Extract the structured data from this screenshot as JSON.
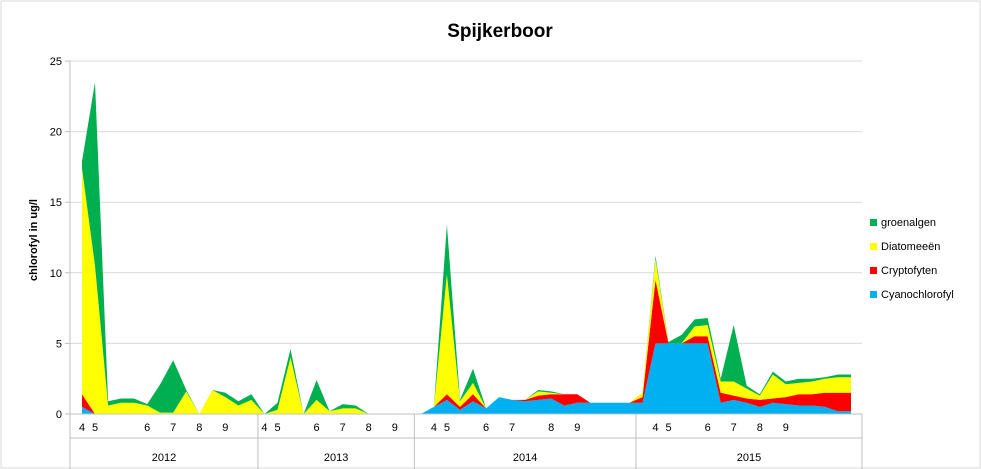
{
  "chart_data": {
    "type": "area",
    "stacked": true,
    "title": "Spijkerboor",
    "ylabel": "chlorofyl in ug/l",
    "xlabel": "",
    "ylim": [
      0,
      25
    ],
    "yticks": [
      0,
      5,
      10,
      15,
      20,
      25
    ],
    "grid": true,
    "legend_position": "right",
    "years": [
      "2012",
      "2013",
      "2014",
      "2015"
    ],
    "year_ranges": [
      [
        0,
        14
      ],
      [
        14,
        26
      ],
      [
        26,
        43
      ],
      [
        43,
        60
      ]
    ],
    "month_ticks": [
      {
        "i": 0,
        "label": "4"
      },
      {
        "i": 1,
        "label": "5"
      },
      {
        "i": 5,
        "label": "6"
      },
      {
        "i": 7,
        "label": "7"
      },
      {
        "i": 9,
        "label": "8"
      },
      {
        "i": 11,
        "label": "9"
      },
      {
        "i": 14,
        "label": "4"
      },
      {
        "i": 15,
        "label": "5"
      },
      {
        "i": 18,
        "label": "6"
      },
      {
        "i": 20,
        "label": "7"
      },
      {
        "i": 22,
        "label": "8"
      },
      {
        "i": 24,
        "label": "9"
      },
      {
        "i": 27,
        "label": "4"
      },
      {
        "i": 28,
        "label": "5"
      },
      {
        "i": 31,
        "label": "6"
      },
      {
        "i": 33,
        "label": "7"
      },
      {
        "i": 36,
        "label": "8"
      },
      {
        "i": 38,
        "label": "9"
      },
      {
        "i": 44,
        "label": "4"
      },
      {
        "i": 45,
        "label": "5"
      },
      {
        "i": 48,
        "label": "6"
      },
      {
        "i": 50,
        "label": "7"
      },
      {
        "i": 52,
        "label": "8"
      },
      {
        "i": 54,
        "label": "9"
      }
    ],
    "series": [
      {
        "name": "Cyanochlorofyl",
        "color": "#00b0f0",
        "values": [
          0.5,
          0,
          0,
          0,
          0,
          0,
          0,
          0,
          0,
          0,
          0,
          0,
          0,
          0,
          0,
          0,
          0,
          0,
          0,
          0,
          0,
          0,
          0,
          0,
          0,
          0,
          0,
          0.5,
          1.0,
          0.3,
          0.9,
          0.4,
          1.2,
          1.0,
          0.9,
          1.0,
          1.1,
          0.6,
          0.8,
          0.8,
          0.8,
          0.8,
          0.8,
          0.8,
          5.0,
          5.0,
          5.0,
          5.0,
          5.0,
          0.8,
          1.0,
          0.8,
          0.5,
          0.8,
          0.7,
          0.6,
          0.6,
          0.5,
          0.2,
          0.2
        ]
      },
      {
        "name": "Cryptofyten",
        "color": "#ff0000",
        "values": [
          0.9,
          0,
          0,
          0,
          0,
          0,
          0,
          0,
          0,
          0,
          0,
          0,
          0,
          0,
          0,
          0,
          0,
          0,
          0,
          0,
          0,
          0,
          0,
          0,
          0,
          0,
          0,
          0,
          0.4,
          0.2,
          0.5,
          0,
          0,
          0,
          0.1,
          0.3,
          0.3,
          0.8,
          0.6,
          0,
          0,
          0,
          0,
          0.4,
          4.5,
          0,
          0,
          0.5,
          0.5,
          0.7,
          0.3,
          0.3,
          0.5,
          0.3,
          0.5,
          0.8,
          0.8,
          1.0,
          1.3,
          1.3
        ]
      },
      {
        "name": "Diatomeeën",
        "color": "#ffff00",
        "values": [
          16.0,
          10.5,
          0.6,
          0.8,
          0.8,
          0.6,
          0.1,
          0.1,
          1.6,
          0,
          1.7,
          1.2,
          0.6,
          1.0,
          0,
          0.3,
          4.0,
          0,
          1.0,
          0.2,
          0.4,
          0.4,
          0,
          0,
          0,
          0,
          0,
          0,
          8.5,
          0.4,
          0.8,
          0,
          0,
          0,
          0,
          0.3,
          0.1,
          0,
          0,
          0,
          0,
          0,
          0,
          0.3,
          1.5,
          0,
          0,
          0.7,
          0.8,
          0.8,
          1.0,
          0.7,
          0.3,
          1.7,
          0.9,
          0.8,
          0.9,
          1.0,
          1.1,
          1.1
        ]
      },
      {
        "name": "groenalgen",
        "color": "#00b050",
        "values": [
          0.5,
          13.0,
          0.3,
          0.3,
          0.3,
          0.1,
          2.0,
          3.7,
          0.1,
          0,
          0,
          0.3,
          0.3,
          0.4,
          0,
          0.5,
          0.6,
          0,
          1.4,
          0,
          0.3,
          0.2,
          0,
          0,
          0,
          0,
          0,
          0,
          3.5,
          0.1,
          1.0,
          0,
          0,
          0,
          0,
          0.1,
          0.1,
          0,
          0,
          0,
          0,
          0,
          0,
          0,
          0.2,
          0.1,
          0.6,
          0.5,
          0.5,
          0.2,
          4.0,
          0.2,
          0.1,
          0.2,
          0.2,
          0.3,
          0.2,
          0.1,
          0.2,
          0.2
        ]
      }
    ]
  }
}
